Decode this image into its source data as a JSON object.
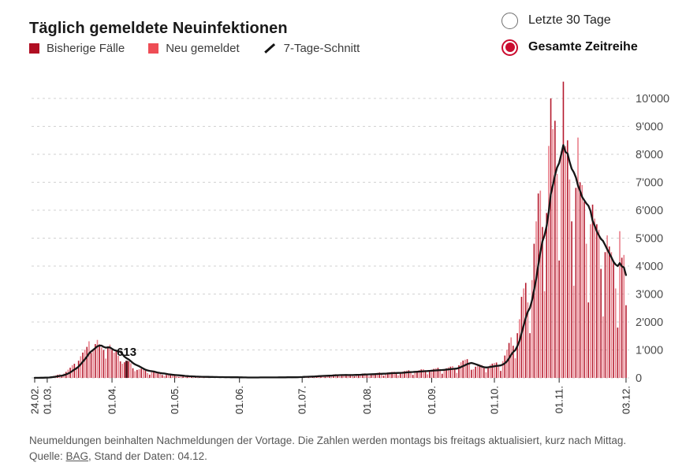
{
  "title": "Täglich gemeldete Neuinfektionen",
  "legend": {
    "items": [
      {
        "label": "Bisherige Fälle",
        "color": "#b00e22",
        "type": "square"
      },
      {
        "label": "Neu gemeldet",
        "color": "#ee4d55",
        "type": "square"
      },
      {
        "label": "7-Tage-Schnitt",
        "color": "#141414",
        "type": "line"
      }
    ]
  },
  "controls": {
    "accent_color": "#cb0c2f",
    "options": [
      {
        "label": "Letzte 30 Tage",
        "selected": false
      },
      {
        "label": "Gesamte Zeitreihe",
        "selected": true
      }
    ]
  },
  "footer": {
    "note": "Neumeldungen beinhalten Nachmeldungen der Vortage. Die Zahlen werden montags bis freitags aktualisiert, kurz nach Mittag.",
    "source_prefix": "Quelle: ",
    "source_link": "BAG",
    "source_suffix": ", Stand der Daten: 04.12."
  },
  "chart_data": {
    "type": "bar",
    "title": "Täglich gemeldete Neuinfektionen",
    "grid": true,
    "legend_position": "top-left",
    "y_axis": {
      "range": [
        0,
        10600
      ],
      "ticks": [
        {
          "value": 0,
          "label": "0"
        },
        {
          "value": 1000,
          "label": "1'000"
        },
        {
          "value": 2000,
          "label": "2'000"
        },
        {
          "value": 3000,
          "label": "3'000"
        },
        {
          "value": 4000,
          "label": "4'000"
        },
        {
          "value": 5000,
          "label": "5'000"
        },
        {
          "value": 6000,
          "label": "6'000"
        },
        {
          "value": 7000,
          "label": "7'000"
        },
        {
          "value": 8000,
          "label": "8'000"
        },
        {
          "value": 9000,
          "label": "9'000"
        },
        {
          "value": 10000,
          "label": "10'000"
        }
      ]
    },
    "x_axis": {
      "ticks": [
        {
          "label": "24.02.",
          "day": 0
        },
        {
          "label": "01.03.",
          "day": 6
        },
        {
          "label": "01.04.",
          "day": 37
        },
        {
          "label": "01.05.",
          "day": 67
        },
        {
          "label": "01.06.",
          "day": 98
        },
        {
          "label": "01.07.",
          "day": 128
        },
        {
          "label": "01.08.",
          "day": 159
        },
        {
          "label": "01.09.",
          "day": 190
        },
        {
          "label": "01.10.",
          "day": 220
        },
        {
          "label": "01.11.",
          "day": 251
        },
        {
          "label": "03.12.",
          "day": 283
        }
      ]
    },
    "annotation": {
      "label": "613",
      "day_index": 44,
      "value": 613,
      "bar_color": "#55121c"
    },
    "line": {
      "name": "7-Tage-Schnitt",
      "window": 7,
      "color": "#161616"
    },
    "series": [
      {
        "name": "Gemeldete Fälle pro Tag",
        "color_dark": "#b51b2e",
        "color_light": "#e9808b",
        "values": [
          2,
          4,
          6,
          9,
          14,
          18,
          24,
          33,
          48,
          66,
          88,
          112,
          130,
          95,
          155,
          215,
          295,
          365,
          455,
          505,
          395,
          615,
          775,
          905,
          1010,
          1110,
          1310,
          895,
          1020,
          1210,
          1360,
          1200,
          1090,
          1000,
          690,
          1110,
          1190,
          1000,
          905,
          955,
          790,
          590,
          505,
          560,
          613,
          595,
          525,
          345,
          240,
          285,
          310,
          325,
          290,
          255,
          175,
          115,
          205,
          230,
          185,
          160,
          150,
          105,
          70,
          105,
          140,
          120,
          100,
          90,
          58,
          38,
          70,
          82,
          62,
          54,
          50,
          34,
          20,
          42,
          52,
          46,
          40,
          36,
          24,
          14,
          30,
          40,
          36,
          30,
          28,
          18,
          10,
          25,
          32,
          28,
          25,
          22,
          14,
          8,
          12,
          20,
          18,
          16,
          17,
          11,
          6,
          15,
          22,
          20,
          18,
          17,
          12,
          7,
          18,
          25,
          22,
          20,
          23,
          16,
          9,
          22,
          28,
          30,
          26,
          28,
          20,
          12,
          35,
          45,
          52,
          56,
          62,
          42,
          25,
          54,
          70,
          85,
          92,
          97,
          68,
          40,
          72,
          100,
          112,
          120,
          132,
          95,
          55,
          92,
          110,
          122,
          112,
          130,
          98,
          58,
          112,
          130,
          142,
          152,
          162,
          118,
          68,
          132,
          152,
          170,
          182,
          192,
          138,
          78,
          162,
          190,
          202,
          212,
          222,
          158,
          88,
          182,
          222,
          242,
          262,
          272,
          198,
          108,
          212,
          252,
          282,
          302,
          312,
          228,
          128,
          242,
          292,
          322,
          342,
          362,
          268,
          148,
          282,
          342,
          382,
          402,
          422,
          318,
          178,
          450,
          560,
          620,
          650,
          670,
          500,
          290,
          310,
          400,
          430,
          450,
          460,
          350,
          200,
          380,
          470,
          510,
          530,
          550,
          420,
          250,
          600,
          800,
          1000,
          1250,
          1450,
          1150,
          700,
          1600,
          2100,
          2900,
          3200,
          3400,
          2700,
          1600,
          3500,
          4800,
          5600,
          6600,
          6700,
          5400,
          3100,
          5900,
          8300,
          10000,
          8900,
          9200,
          7300,
          4200,
          8100,
          10600,
          8300,
          8500,
          7100,
          5600,
          3300,
          6800,
          8600,
          7000,
          6900,
          6300,
          4800,
          2700,
          5500,
          6200,
          5700,
          5500,
          5300,
          3900,
          2200,
          4500,
          5100,
          4700,
          4500,
          4200,
          3200,
          1800,
          5250,
          4300,
          4400,
          2600
        ]
      }
    ]
  }
}
